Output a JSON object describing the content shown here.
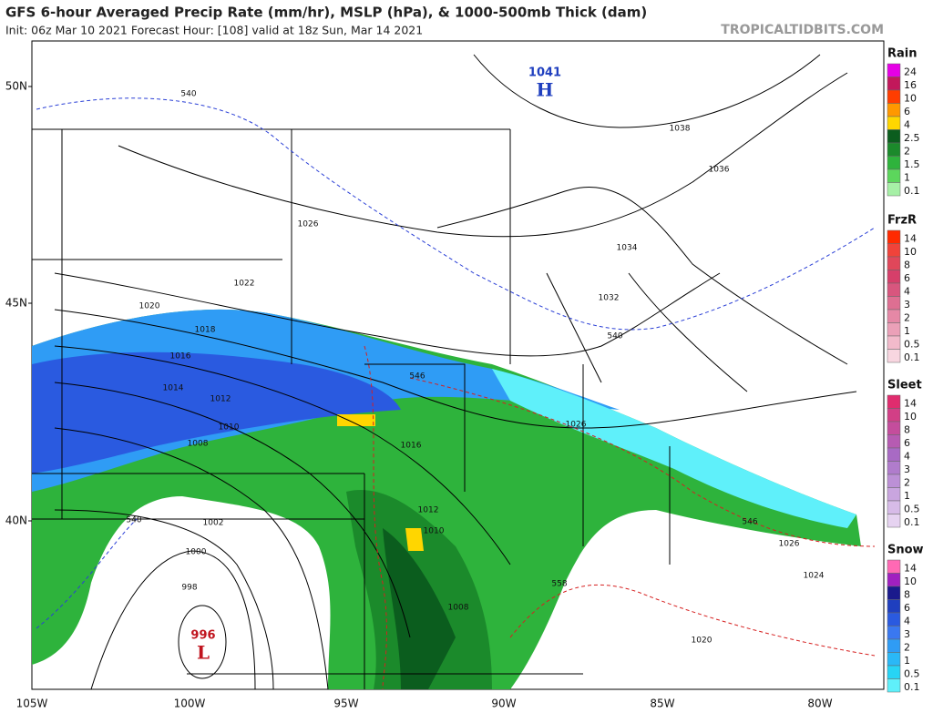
{
  "header": {
    "title": "GFS 6-hour Averaged Precip Rate (mm/hr), MSLP (hPa), & 1000-500mb Thick (dam)",
    "subtitle": "Init: 06z Mar 10 2021   Forecast Hour: [108]   valid at 18z Sun, Mar 14 2021",
    "site": "TROPICALTIDBITS.COM"
  },
  "map": {
    "lat_labels": [
      "50N",
      "45N",
      "40N"
    ],
    "lon_labels": [
      "105W",
      "100W",
      "95W",
      "90W",
      "85W",
      "80W"
    ],
    "contour_labels": [
      "540",
      "1038",
      "1036",
      "1026",
      "1034",
      "1022",
      "1032",
      "1020",
      "1018",
      "540",
      "1016",
      "546",
      "1014",
      "1012",
      "1010",
      "1026",
      "1016",
      "1008",
      "1012",
      "540",
      "1002",
      "546",
      "1010",
      "1026",
      "1000",
      "1024",
      "998",
      "558",
      "1008",
      "1020"
    ],
    "pressure_centers": [
      {
        "value": "1041",
        "symbol": "H"
      },
      {
        "value": "996",
        "symbol": "L"
      }
    ]
  },
  "legend": [
    {
      "title": "Rain",
      "labels": [
        "24",
        "16",
        "10",
        "6",
        "4",
        "2.5",
        "2",
        "1.5",
        "1",
        "0.1"
      ],
      "colors": [
        "#e600e6",
        "#c2185b",
        "#ff3d00",
        "#ff9800",
        "#ffd600",
        "#0b5d1e",
        "#1b8a2b",
        "#2eb33c",
        "#5cd65c",
        "#a6f0a6"
      ]
    },
    {
      "title": "FrzR",
      "labels": [
        "14",
        "10",
        "8",
        "6",
        "4",
        "3",
        "2",
        "1",
        "0.5",
        "0.1"
      ],
      "colors": [
        "#ff2a00",
        "#f0433a",
        "#e0475a",
        "#d63f6a",
        "#d8567e",
        "#de6f92",
        "#e588a6",
        "#eba0b8",
        "#f2bacb",
        "#f8d6e0"
      ]
    },
    {
      "title": "Sleet",
      "labels": [
        "14",
        "10",
        "8",
        "6",
        "4",
        "3",
        "2",
        "1",
        "0.5",
        "0.1"
      ],
      "colors": [
        "#e02c6e",
        "#d23f86",
        "#c44d9c",
        "#b65bb2",
        "#a86ac4",
        "#b07ccc",
        "#bc90d6",
        "#c9a5df",
        "#d7bbe8",
        "#e6d3f1"
      ]
    },
    {
      "title": "Snow",
      "labels": [
        "14",
        "10",
        "8",
        "6",
        "4",
        "3",
        "2",
        "1",
        "0.5",
        "0.1"
      ],
      "colors": [
        "#ff69b4",
        "#a020c0",
        "#1a1a8c",
        "#1f3fbf",
        "#2a5ae0",
        "#3a78f0",
        "#2f9cf5",
        "#2ab8f7",
        "#27d4f5",
        "#5ff0fa"
      ]
    }
  ]
}
